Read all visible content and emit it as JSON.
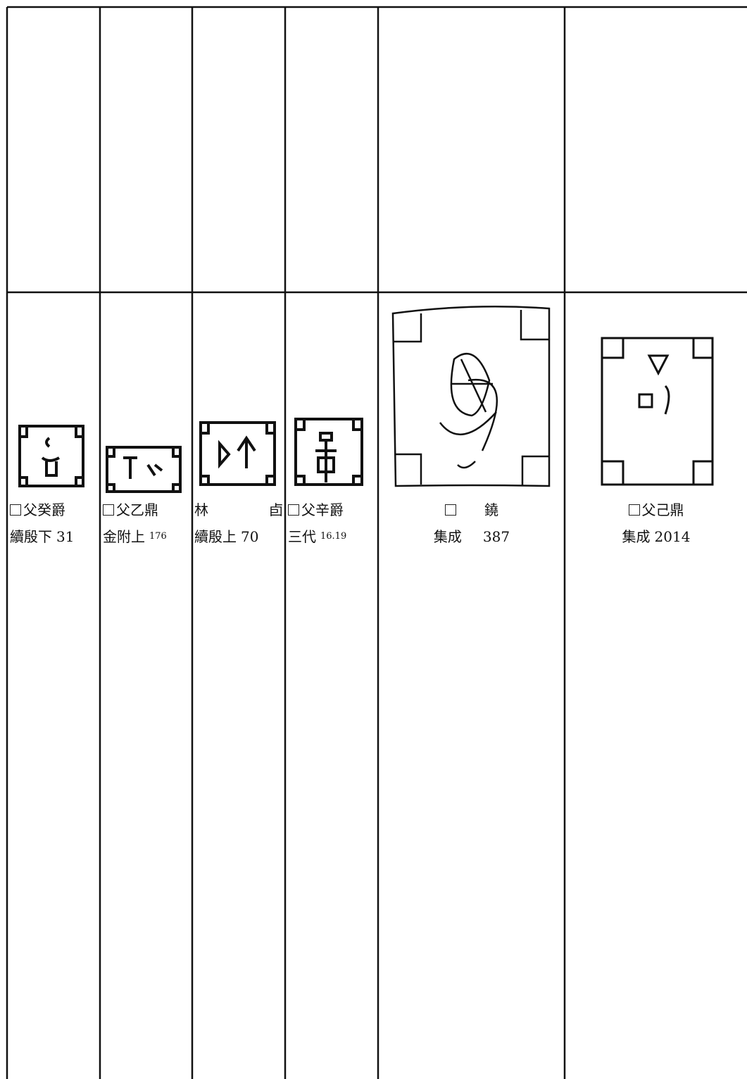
{
  "table": {
    "cells": [
      {
        "title": [
          "父癸爵"
        ],
        "source": "續殷下",
        "ref": "31"
      },
      {
        "title": [
          "父乙鼎"
        ],
        "source": "金附上",
        "ref": "176"
      },
      {
        "title": [
          "林",
          "卣"
        ],
        "source": "續殷上",
        "ref": "70"
      },
      {
        "title": [
          "父辛爵"
        ],
        "source": "三代",
        "ref": "16.19"
      },
      {
        "title": [
          "鐃"
        ],
        "source": "集成",
        "ref": "387"
      },
      {
        "title": [
          "父己鼎"
        ],
        "source": "集成",
        "ref": "2014"
      }
    ]
  }
}
